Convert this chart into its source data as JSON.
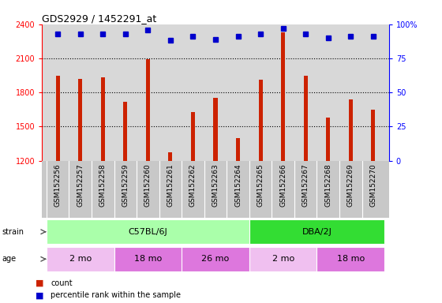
{
  "title": "GDS2929 / 1452291_at",
  "samples": [
    "GSM152256",
    "GSM152257",
    "GSM152258",
    "GSM152259",
    "GSM152260",
    "GSM152261",
    "GSM152262",
    "GSM152263",
    "GSM152264",
    "GSM152265",
    "GSM152266",
    "GSM152267",
    "GSM152268",
    "GSM152269",
    "GSM152270"
  ],
  "counts": [
    1950,
    1920,
    1930,
    1720,
    2090,
    1270,
    1630,
    1750,
    1400,
    1910,
    2330,
    1950,
    1580,
    1740,
    1650
  ],
  "percentile_ranks": [
    93,
    93,
    93,
    93,
    96,
    88,
    91,
    89,
    91,
    93,
    97,
    93,
    90,
    91,
    91
  ],
  "ylim_left": [
    1200,
    2400
  ],
  "ylim_right": [
    0,
    100
  ],
  "bar_color": "#cc2200",
  "dot_color": "#0000cc",
  "bg_color": "#d8d8d8",
  "xtick_bg": "#c8c8c8",
  "strain_groups": [
    {
      "label": "C57BL/6J",
      "start": 0,
      "end": 9,
      "color": "#aaffaa"
    },
    {
      "label": "DBA/2J",
      "start": 9,
      "end": 15,
      "color": "#33dd33"
    }
  ],
  "age_groups": [
    {
      "label": "2 mo",
      "start": 0,
      "end": 3,
      "color": "#f0c0f0"
    },
    {
      "label": "18 mo",
      "start": 3,
      "end": 6,
      "color": "#dd77dd"
    },
    {
      "label": "26 mo",
      "start": 6,
      "end": 9,
      "color": "#dd77dd"
    },
    {
      "label": "2 mo",
      "start": 9,
      "end": 12,
      "color": "#f0c0f0"
    },
    {
      "label": "18 mo",
      "start": 12,
      "end": 15,
      "color": "#dd77dd"
    }
  ]
}
